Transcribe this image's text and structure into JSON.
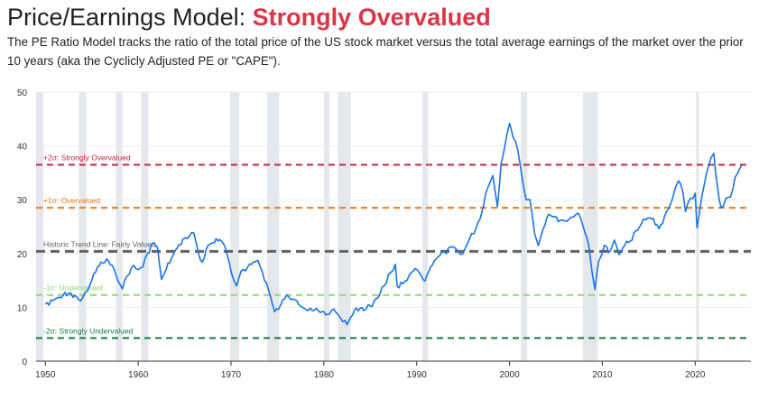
{
  "header": {
    "title_prefix": "Price/Earnings Model:",
    "title_verdict": "Strongly Overvalued",
    "verdict_color": "#dc3545",
    "description": "The PE Ratio Model tracks the ratio of the total price of the US stock market versus the total average earnings of the market over the prior 10 years (aka the Cyclicly Adjusted PE or \"CAPE\")."
  },
  "chart_data": {
    "type": "line",
    "xlim": [
      1949,
      2026
    ],
    "ylim": [
      0,
      50
    ],
    "x_ticks": [
      1950,
      1960,
      1970,
      1980,
      1990,
      2000,
      2010,
      2020
    ],
    "y_ticks": [
      0,
      10,
      20,
      30,
      40,
      50
    ],
    "grid": "horizontal",
    "series": [
      {
        "color": "#1a73e8",
        "points": [
          [
            1950.0,
            10.6
          ],
          [
            1950.8,
            11.3
          ],
          [
            1951.5,
            11.9
          ],
          [
            1952.5,
            12.6
          ],
          [
            1953.2,
            12.2
          ],
          [
            1953.8,
            11.2
          ],
          [
            1954.5,
            13.0
          ],
          [
            1955.0,
            15.0
          ],
          [
            1955.6,
            17.5
          ],
          [
            1956.2,
            18.2
          ],
          [
            1956.6,
            19.0
          ],
          [
            1957.2,
            17.8
          ],
          [
            1957.8,
            15.0
          ],
          [
            1958.3,
            13.4
          ],
          [
            1958.8,
            15.8
          ],
          [
            1959.5,
            17.8
          ],
          [
            1960.0,
            17.0
          ],
          [
            1960.5,
            17.5
          ],
          [
            1961.0,
            20.0
          ],
          [
            1961.6,
            22.0
          ],
          [
            1962.1,
            21.0
          ],
          [
            1962.5,
            15.2
          ],
          [
            1963.0,
            17.0
          ],
          [
            1963.6,
            19.2
          ],
          [
            1964.2,
            21.0
          ],
          [
            1964.8,
            22.6
          ],
          [
            1965.5,
            23.2
          ],
          [
            1966.0,
            23.8
          ],
          [
            1966.5,
            20.0
          ],
          [
            1966.9,
            18.4
          ],
          [
            1967.5,
            21.5
          ],
          [
            1968.0,
            22.0
          ],
          [
            1968.8,
            22.6
          ],
          [
            1969.3,
            21.5
          ],
          [
            1969.8,
            18.4
          ],
          [
            1970.3,
            15.0
          ],
          [
            1970.6,
            14.0
          ],
          [
            1971.1,
            16.8
          ],
          [
            1971.8,
            17.5
          ],
          [
            1972.4,
            18.4
          ],
          [
            1972.9,
            18.7
          ],
          [
            1973.4,
            16.4
          ],
          [
            1974.0,
            13.5
          ],
          [
            1974.7,
            9.2
          ],
          [
            1975.1,
            9.6
          ],
          [
            1975.6,
            11.4
          ],
          [
            1976.2,
            12.0
          ],
          [
            1976.9,
            11.4
          ],
          [
            1977.5,
            10.2
          ],
          [
            1978.3,
            9.4
          ],
          [
            1979.0,
            9.5
          ],
          [
            1979.8,
            9.2
          ],
          [
            1980.2,
            8.6
          ],
          [
            1980.8,
            9.4
          ],
          [
            1981.3,
            9.1
          ],
          [
            1981.8,
            8.0
          ],
          [
            1982.5,
            6.8
          ],
          [
            1982.9,
            8.2
          ],
          [
            1983.5,
            9.9
          ],
          [
            1984.3,
            9.4
          ],
          [
            1985.0,
            10.3
          ],
          [
            1985.8,
            11.7
          ],
          [
            1986.5,
            14.0
          ],
          [
            1987.2,
            16.5
          ],
          [
            1987.7,
            18.0
          ],
          [
            1987.9,
            13.9
          ],
          [
            1988.5,
            14.4
          ],
          [
            1989.2,
            16.0
          ],
          [
            1989.8,
            17.2
          ],
          [
            1990.5,
            15.8
          ],
          [
            1990.9,
            14.9
          ],
          [
            1991.5,
            17.5
          ],
          [
            1992.3,
            19.4
          ],
          [
            1993.0,
            20.3
          ],
          [
            1993.8,
            21.2
          ],
          [
            1994.5,
            20.3
          ],
          [
            1995.0,
            20.0
          ],
          [
            1995.7,
            22.8
          ],
          [
            1996.4,
            24.7
          ],
          [
            1997.0,
            27.5
          ],
          [
            1997.6,
            32.0
          ],
          [
            1998.2,
            34.5
          ],
          [
            1998.7,
            28.7
          ],
          [
            1999.1,
            36.8
          ],
          [
            1999.7,
            42.0
          ],
          [
            2000.0,
            44.2
          ],
          [
            2000.4,
            41.5
          ],
          [
            2000.9,
            39.2
          ],
          [
            2001.3,
            34.8
          ],
          [
            2001.8,
            30.0
          ],
          [
            2002.2,
            30.0
          ],
          [
            2002.7,
            23.8
          ],
          [
            2003.1,
            21.5
          ],
          [
            2003.6,
            24.5
          ],
          [
            2004.2,
            27.3
          ],
          [
            2004.8,
            26.8
          ],
          [
            2005.5,
            26.2
          ],
          [
            2006.2,
            26.0
          ],
          [
            2006.9,
            26.8
          ],
          [
            2007.4,
            27.5
          ],
          [
            2007.9,
            25.2
          ],
          [
            2008.5,
            21.8
          ],
          [
            2008.9,
            16.5
          ],
          [
            2009.2,
            13.3
          ],
          [
            2009.6,
            18.5
          ],
          [
            2010.2,
            21.5
          ],
          [
            2010.7,
            20.2
          ],
          [
            2011.3,
            22.5
          ],
          [
            2011.8,
            19.8
          ],
          [
            2012.4,
            21.5
          ],
          [
            2013.0,
            22.3
          ],
          [
            2013.6,
            24.2
          ],
          [
            2014.2,
            25.5
          ],
          [
            2014.9,
            26.6
          ],
          [
            2015.5,
            26.5
          ],
          [
            2016.1,
            24.6
          ],
          [
            2016.7,
            26.9
          ],
          [
            2017.3,
            29.0
          ],
          [
            2017.9,
            32.4
          ],
          [
            2018.2,
            33.5
          ],
          [
            2018.7,
            31.2
          ],
          [
            2018.95,
            27.8
          ],
          [
            2019.5,
            30.3
          ],
          [
            2020.0,
            31.2
          ],
          [
            2020.2,
            24.8
          ],
          [
            2020.7,
            30.5
          ],
          [
            2021.2,
            34.8
          ],
          [
            2021.7,
            37.8
          ],
          [
            2022.0,
            38.6
          ],
          [
            2022.4,
            32.5
          ],
          [
            2022.8,
            28.5
          ],
          [
            2023.3,
            30.2
          ],
          [
            2023.8,
            30.5
          ],
          [
            2024.3,
            34.2
          ],
          [
            2024.8,
            35.8
          ],
          [
            2025.0,
            36.4
          ]
        ]
      }
    ],
    "reference_lines": [
      {
        "label": "+2σ: Strongly Overvalued",
        "y": 36.5,
        "color": "#c8283b"
      },
      {
        "label": "+1σ: Overvalued",
        "y": 28.5,
        "color": "#ef7a1a"
      },
      {
        "label": "Historic Trend Line: Fairly Valued",
        "y": 20.4,
        "color": "#636363"
      },
      {
        "label": "-1σ: Undervalued",
        "y": 12.3,
        "color": "#8fd96c"
      },
      {
        "label": "-2σ: Strongly Undervalued",
        "y": 4.3,
        "color": "#1a7a48"
      }
    ],
    "recessions": [
      [
        1948.9,
        1949.8
      ],
      [
        1953.6,
        1954.4
      ],
      [
        1957.6,
        1958.3
      ],
      [
        1960.3,
        1961.1
      ],
      [
        1969.9,
        1970.9
      ],
      [
        1973.9,
        1975.2
      ],
      [
        1980.0,
        1980.6
      ],
      [
        1981.5,
        1982.9
      ],
      [
        1990.6,
        1991.2
      ],
      [
        2001.2,
        2001.9
      ],
      [
        2007.9,
        2009.5
      ],
      [
        2020.1,
        2020.4
      ]
    ],
    "recession_color": "#e4e8ec"
  }
}
